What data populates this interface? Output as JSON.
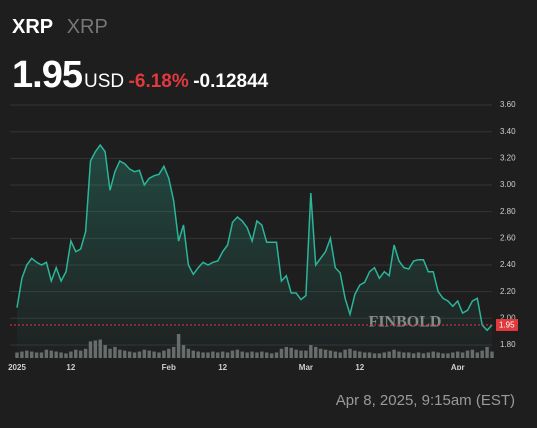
{
  "header": {
    "symbol": "XRP",
    "name": "XRP",
    "price": 1.95,
    "currency": "USD",
    "change_percent": "-6.18%",
    "change": "-0.12844"
  },
  "chart_data": {
    "type": "line",
    "color": "#2bb59a",
    "price_color": "#e0393e",
    "x": [
      0,
      1,
      2,
      3,
      4,
      5,
      6,
      7,
      8,
      9,
      10,
      11,
      12,
      13,
      14,
      15,
      16,
      17,
      18,
      19,
      20,
      21,
      22,
      23,
      24,
      25,
      26,
      27,
      28,
      29,
      30,
      31,
      32,
      33,
      34,
      35,
      36,
      37,
      38,
      39,
      40,
      41,
      42,
      43,
      44,
      45,
      46,
      47,
      48,
      49,
      50,
      51,
      52,
      53,
      54,
      55,
      56,
      57,
      58,
      59,
      60,
      61,
      62,
      63,
      64,
      65,
      66,
      67,
      68,
      69,
      70,
      71,
      72,
      73,
      74,
      75,
      76,
      77,
      78,
      79,
      80,
      81,
      82,
      83,
      84,
      85,
      86,
      87,
      88,
      89,
      90,
      91,
      92,
      93,
      94,
      95,
      96,
      97
    ],
    "series": [
      {
        "name": "XRP",
        "values": [
          2.08,
          2.3,
          2.4,
          2.45,
          2.42,
          2.4,
          2.42,
          2.28,
          2.38,
          2.28,
          2.35,
          2.58,
          2.5,
          2.52,
          2.65,
          3.18,
          3.25,
          3.3,
          3.25,
          2.96,
          3.1,
          3.18,
          3.16,
          3.12,
          3.1,
          3.11,
          3.0,
          3.05,
          3.07,
          3.08,
          3.14,
          3.05,
          2.88,
          2.58,
          2.7,
          2.4,
          2.33,
          2.38,
          2.42,
          2.4,
          2.42,
          2.43,
          2.5,
          2.55,
          2.72,
          2.76,
          2.73,
          2.68,
          2.58,
          2.73,
          2.7,
          2.57,
          2.57,
          2.57,
          2.28,
          2.32,
          2.19,
          2.19,
          2.14,
          2.17,
          2.94,
          2.4,
          2.45,
          2.5,
          2.6,
          2.38,
          2.34,
          2.15,
          2.03,
          2.18,
          2.25,
          2.27,
          2.35,
          2.38,
          2.3,
          2.35,
          2.32,
          2.55,
          2.43,
          2.38,
          2.37,
          2.43,
          2.44,
          2.44,
          2.35,
          2.35,
          2.2,
          2.15,
          2.13,
          2.09,
          2.13,
          2.04,
          2.06,
          2.13,
          2.15,
          1.95,
          1.91,
          1.95
        ]
      }
    ],
    "volume": {
      "color": "#6a6a6a",
      "values": [
        6,
        7,
        8,
        7,
        6,
        6,
        9,
        8,
        7,
        6,
        5,
        7,
        9,
        8,
        10,
        18,
        19,
        20,
        14,
        10,
        12,
        9,
        8,
        7,
        6,
        7,
        9,
        8,
        7,
        6,
        8,
        10,
        12,
        26,
        14,
        10,
        8,
        7,
        6,
        6,
        7,
        6,
        7,
        6,
        8,
        9,
        7,
        6,
        7,
        6,
        7,
        6,
        5,
        6,
        10,
        12,
        11,
        9,
        8,
        8,
        14,
        12,
        10,
        9,
        8,
        7,
        6,
        9,
        10,
        8,
        7,
        6,
        6,
        5,
        5,
        6,
        7,
        9,
        7,
        6,
        6,
        5,
        6,
        5,
        6,
        7,
        6,
        5,
        5,
        6,
        7,
        6,
        8,
        9,
        6,
        8,
        12,
        7
      ]
    },
    "xlim": [
      0,
      97
    ],
    "xticks": [
      {
        "value": 0,
        "label": "2025"
      },
      {
        "value": 11,
        "label": "12"
      },
      {
        "value": 31,
        "label": "Feb"
      },
      {
        "value": 42,
        "label": "12"
      },
      {
        "value": 59,
        "label": "Mar"
      },
      {
        "value": 70,
        "label": "12"
      },
      {
        "value": 90,
        "label": "Apr"
      }
    ],
    "ylim": [
      1.7,
      3.7
    ],
    "yticks": [
      {
        "value": 1.8,
        "label": "1.80"
      },
      {
        "value": 2.0,
        "label": "2.00"
      },
      {
        "value": 2.2,
        "label": "2.20"
      },
      {
        "value": 2.4,
        "label": "2.40"
      },
      {
        "value": 2.6,
        "label": "2.60"
      },
      {
        "value": 2.8,
        "label": "2.80"
      },
      {
        "value": 3.0,
        "label": "3.00"
      },
      {
        "value": 3.2,
        "label": "3.20"
      },
      {
        "value": 3.4,
        "label": "3.40"
      },
      {
        "value": 3.6,
        "label": "3.60"
      }
    ],
    "grid": true,
    "watermark": "FINBOLD"
  },
  "footer": {
    "timestamp": "Apr 8, 2025, 9:15am (EST)"
  }
}
